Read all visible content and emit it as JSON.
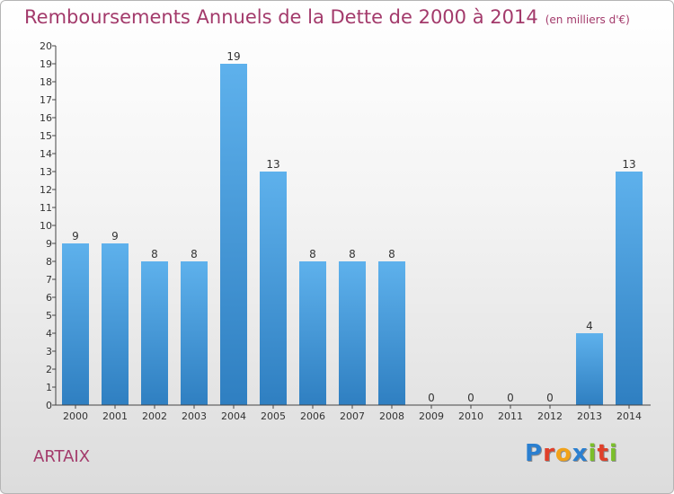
{
  "header": {
    "title": "Remboursements Annuels de la Dette de 2000 à 2014",
    "unit": "(en milliers d'€)"
  },
  "footer": {
    "commune": "ARTAIX",
    "logo_text": "Proxiti"
  },
  "colors": {
    "title": "#a33a6b",
    "bar_top": "#5eb1ec",
    "bar_bottom": "#2f7fc1",
    "logo": [
      "#2a7fd0",
      "#e0402a",
      "#f1a21a",
      "#2a7fd0",
      "#7bbf2a",
      "#e0402a",
      "#7bbf2a"
    ]
  },
  "chart_data": {
    "type": "bar",
    "categories": [
      "2000",
      "2001",
      "2002",
      "2003",
      "2004",
      "2005",
      "2006",
      "2007",
      "2008",
      "2009",
      "2010",
      "2011",
      "2012",
      "2013",
      "2014"
    ],
    "values": [
      9,
      9,
      8,
      8,
      19,
      13,
      8,
      8,
      8,
      0,
      0,
      0,
      0,
      4,
      13
    ],
    "title": "Remboursements Annuels de la Dette de 2000 à 2014",
    "xlabel": "",
    "ylabel": "",
    "ylim": [
      0,
      20
    ],
    "yticks": [
      0,
      1,
      2,
      3,
      4,
      5,
      6,
      7,
      8,
      9,
      10,
      11,
      12,
      13,
      14,
      15,
      16,
      17,
      18,
      19,
      20
    ],
    "data_labels": true,
    "grid": false,
    "legend": "none"
  }
}
